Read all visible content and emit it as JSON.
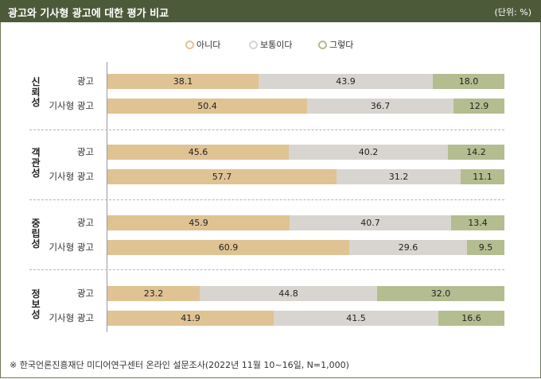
{
  "header": {
    "title": "광고와 기사형 광고에 대한 평가 비교",
    "unit": "(단위: %)"
  },
  "colors": {
    "header_bg": "#4d5a3a",
    "no": "#dfc393",
    "neutral": "#d8d5d0",
    "yes": "#b3bd90"
  },
  "legend": [
    {
      "key": "no",
      "label": "아니다"
    },
    {
      "key": "neutral",
      "label": "보통이다"
    },
    {
      "key": "yes",
      "label": "그렇다"
    }
  ],
  "chart_data": {
    "type": "bar",
    "orientation": "horizontal",
    "stacked": true,
    "title": "광고와 기사형 광고에 대한 평가 비교",
    "unit": "%",
    "xlim": [
      0,
      100
    ],
    "series_names": [
      "아니다",
      "보통이다",
      "그렇다"
    ],
    "groups": [
      {
        "name": "신뢰성",
        "rows": [
          {
            "label": "광고",
            "values": [
              38.1,
              43.9,
              18.0
            ],
            "labels": [
              "38.1",
              "43.9",
              "18.0"
            ]
          },
          {
            "label": "기사형 광고",
            "values": [
              50.4,
              36.7,
              12.9
            ],
            "labels": [
              "50.4",
              "36.7",
              "12.9"
            ]
          }
        ]
      },
      {
        "name": "객관성",
        "rows": [
          {
            "label": "광고",
            "values": [
              45.6,
              40.2,
              14.2
            ],
            "labels": [
              "45.6",
              "40.2",
              "14.2"
            ]
          },
          {
            "label": "기사형 광고",
            "values": [
              57.7,
              31.2,
              11.1
            ],
            "labels": [
              "57.7",
              "31.2",
              "11.1"
            ]
          }
        ]
      },
      {
        "name": "중립성",
        "rows": [
          {
            "label": "광고",
            "values": [
              45.9,
              40.7,
              13.4
            ],
            "labels": [
              "45.9",
              "40.7",
              "13.4"
            ]
          },
          {
            "label": "기사형 광고",
            "values": [
              60.9,
              29.6,
              9.5
            ],
            "labels": [
              "60.9",
              "29.6",
              "9.5"
            ]
          }
        ]
      },
      {
        "name": "정보성",
        "rows": [
          {
            "label": "광고",
            "values": [
              23.2,
              44.8,
              32.0
            ],
            "labels": [
              "23.2",
              "44.8",
              "32.0"
            ]
          },
          {
            "label": "기사형 광고",
            "values": [
              41.9,
              41.5,
              16.6
            ],
            "labels": [
              "41.9",
              "41.5",
              "16.6"
            ]
          }
        ]
      }
    ]
  },
  "footnote": "※ 한국언론진흥재단 미디어연구센터 온라인 설문조사(2022년 11월 10~16일, N=1,000)"
}
